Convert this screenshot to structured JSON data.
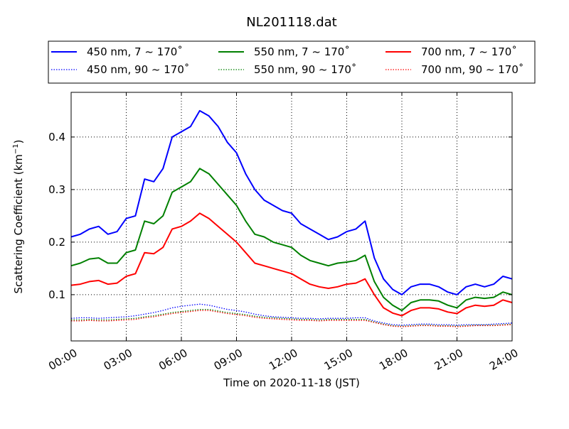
{
  "chart_data": {
    "type": "line",
    "title": "NL201118.dat",
    "xlabel": "Time on 2020-11-18 (JST)",
    "ylabel": "Scattering Coefficient (km",
    "ylabel_exp": "−1",
    "ylabel_close": ")",
    "xlim": [
      0,
      24
    ],
    "ylim": [
      0.012,
      0.485
    ],
    "x_ticks": [
      0,
      3,
      6,
      9,
      12,
      15,
      18,
      21,
      24
    ],
    "x_tick_labels": [
      "00:00",
      "03:00",
      "06:00",
      "09:00",
      "12:00",
      "15:00",
      "18:00",
      "21:00",
      "24:00"
    ],
    "y_ticks": [
      0.1,
      0.2,
      0.3,
      0.4
    ],
    "y_tick_labels": [
      "0.1",
      "0.2",
      "0.3",
      "0.4"
    ],
    "grid": true,
    "legend_position": "top",
    "x": [
      0,
      0.5,
      1,
      1.5,
      2,
      2.5,
      3,
      3.5,
      4,
      4.5,
      5,
      5.5,
      6,
      6.5,
      7,
      7.5,
      8,
      8.5,
      9,
      9.5,
      10,
      10.5,
      11,
      11.5,
      12,
      12.5,
      13,
      13.5,
      14,
      14.5,
      15,
      15.5,
      16,
      16.5,
      17,
      17.5,
      18,
      18.5,
      19,
      19.5,
      20,
      20.5,
      21,
      21.5,
      22,
      22.5,
      23,
      23.5,
      24
    ],
    "series": [
      {
        "name": "450 nm, 7 ~ 170˚",
        "color": "#0000ff",
        "style": "solid",
        "values": [
          0.21,
          0.215,
          0.225,
          0.23,
          0.215,
          0.22,
          0.245,
          0.25,
          0.32,
          0.315,
          0.34,
          0.4,
          0.41,
          0.42,
          0.45,
          0.44,
          0.42,
          0.39,
          0.37,
          0.33,
          0.3,
          0.28,
          0.27,
          0.26,
          0.255,
          0.235,
          0.225,
          0.215,
          0.205,
          0.21,
          0.22,
          0.225,
          0.24,
          0.17,
          0.13,
          0.11,
          0.1,
          0.115,
          0.12,
          0.12,
          0.115,
          0.105,
          0.1,
          0.115,
          0.12,
          0.115,
          0.12,
          0.135,
          0.13
        ]
      },
      {
        "name": "450 nm, 90 ~ 170˚",
        "color": "#0000ff",
        "style": "dotted",
        "values": [
          0.055,
          0.056,
          0.056,
          0.055,
          0.056,
          0.057,
          0.058,
          0.06,
          0.063,
          0.066,
          0.07,
          0.075,
          0.078,
          0.08,
          0.082,
          0.08,
          0.076,
          0.072,
          0.07,
          0.067,
          0.063,
          0.06,
          0.058,
          0.057,
          0.056,
          0.055,
          0.055,
          0.054,
          0.055,
          0.055,
          0.055,
          0.056,
          0.056,
          0.05,
          0.046,
          0.043,
          0.042,
          0.043,
          0.044,
          0.044,
          0.043,
          0.043,
          0.042,
          0.043,
          0.043,
          0.043,
          0.044,
          0.045,
          0.046
        ]
      },
      {
        "name": "550 nm, 7 ~ 170˚",
        "color": "#008000",
        "style": "solid",
        "values": [
          0.155,
          0.16,
          0.168,
          0.17,
          0.16,
          0.16,
          0.18,
          0.185,
          0.24,
          0.235,
          0.25,
          0.295,
          0.305,
          0.315,
          0.34,
          0.33,
          0.31,
          0.29,
          0.27,
          0.24,
          0.215,
          0.21,
          0.2,
          0.195,
          0.19,
          0.175,
          0.165,
          0.16,
          0.155,
          0.16,
          0.162,
          0.165,
          0.175,
          0.125,
          0.095,
          0.08,
          0.07,
          0.085,
          0.09,
          0.09,
          0.088,
          0.08,
          0.075,
          0.09,
          0.095,
          0.093,
          0.095,
          0.105,
          0.1
        ]
      },
      {
        "name": "550 nm, 90 ~ 170˚",
        "color": "#008000",
        "style": "dotted",
        "values": [
          0.052,
          0.052,
          0.053,
          0.052,
          0.052,
          0.053,
          0.054,
          0.055,
          0.058,
          0.06,
          0.063,
          0.066,
          0.068,
          0.07,
          0.072,
          0.072,
          0.069,
          0.066,
          0.064,
          0.062,
          0.059,
          0.057,
          0.056,
          0.055,
          0.054,
          0.053,
          0.053,
          0.052,
          0.053,
          0.053,
          0.053,
          0.053,
          0.053,
          0.048,
          0.044,
          0.041,
          0.04,
          0.041,
          0.042,
          0.042,
          0.041,
          0.041,
          0.04,
          0.041,
          0.042,
          0.042,
          0.042,
          0.043,
          0.044
        ]
      },
      {
        "name": "700 nm, 7 ~ 170˚",
        "color": "#ff0000",
        "style": "solid",
        "values": [
          0.118,
          0.12,
          0.125,
          0.127,
          0.12,
          0.122,
          0.135,
          0.14,
          0.18,
          0.178,
          0.19,
          0.225,
          0.23,
          0.24,
          0.255,
          0.245,
          0.23,
          0.215,
          0.2,
          0.18,
          0.16,
          0.155,
          0.15,
          0.145,
          0.14,
          0.13,
          0.12,
          0.115,
          0.112,
          0.115,
          0.12,
          0.122,
          0.13,
          0.1,
          0.075,
          0.065,
          0.06,
          0.07,
          0.075,
          0.075,
          0.073,
          0.067,
          0.064,
          0.075,
          0.08,
          0.078,
          0.08,
          0.09,
          0.085
        ]
      },
      {
        "name": "700 nm, 90 ~ 170˚",
        "color": "#ff0000",
        "style": "dotted",
        "values": [
          0.05,
          0.05,
          0.051,
          0.05,
          0.05,
          0.051,
          0.052,
          0.053,
          0.056,
          0.058,
          0.061,
          0.064,
          0.066,
          0.068,
          0.07,
          0.07,
          0.067,
          0.064,
          0.062,
          0.06,
          0.057,
          0.055,
          0.054,
          0.053,
          0.052,
          0.051,
          0.051,
          0.05,
          0.051,
          0.051,
          0.051,
          0.051,
          0.051,
          0.047,
          0.043,
          0.04,
          0.039,
          0.04,
          0.041,
          0.041,
          0.04,
          0.04,
          0.039,
          0.04,
          0.041,
          0.041,
          0.041,
          0.042,
          0.043
        ]
      }
    ]
  }
}
